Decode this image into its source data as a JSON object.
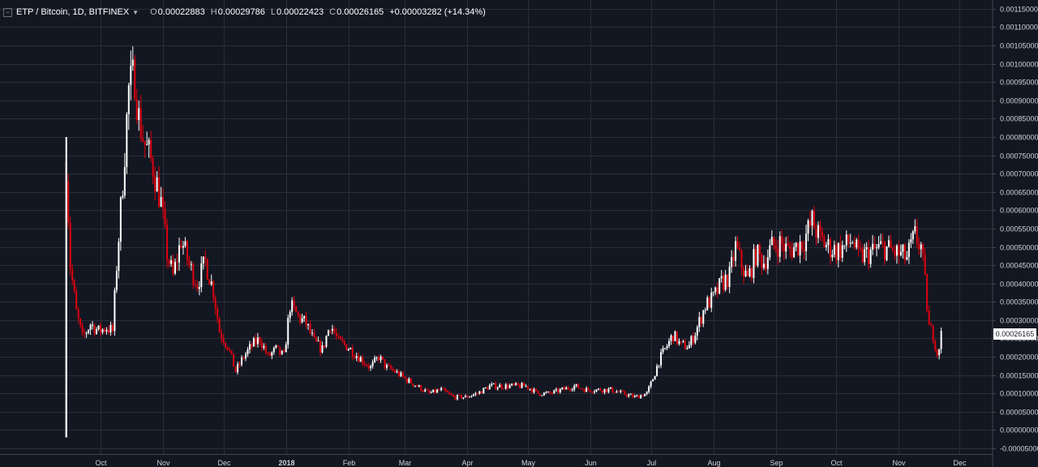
{
  "header": {
    "symbol": "ETP / Bitcoin, 1D, BITFINEX",
    "open_label": "O",
    "open": "0.00022883",
    "high_label": "H",
    "high": "0.00029786",
    "low_label": "L",
    "low": "0.00022423",
    "close_label": "C",
    "close": "0.00026165",
    "change": "+0.00003282 (+14.34%)"
  },
  "last_price_tag": "0.00026165",
  "colors": {
    "background": "#131722",
    "grid": "#2a2e39",
    "up": "#ffffff",
    "down": "#e0000f",
    "text": "#d1d4dc"
  },
  "chart_data": {
    "type": "candlestick",
    "title": "ETP / Bitcoin, 1D, BITFINEX",
    "ylim": [
      -5e-05,
      0.001152
    ],
    "y_ticks": [
      "0.00115000",
      "0.00110000",
      "0.00105000",
      "0.00100000",
      "0.00095000",
      "0.00090000",
      "0.00085000",
      "0.00080000",
      "0.00075000",
      "0.00070000",
      "0.00065000",
      "0.00060000",
      "0.00055000",
      "0.00050000",
      "0.00045000",
      "0.00040000",
      "0.00035000",
      "0.00030000",
      "0.00025000",
      "0.00020000",
      "0.00015000",
      "0.00010000",
      "0.00005000",
      "0.00000000",
      "-0.00005000"
    ],
    "x_ticks": [
      "Oct",
      "Nov",
      "Dec",
      "2018",
      "Feb",
      "Mar",
      "Apr",
      "May",
      "Jun",
      "Jul",
      "Aug",
      "Sep",
      "Oct",
      "Nov",
      "Dec"
    ],
    "grid": true,
    "close_series": [
      [
        "2017-09-14",
        0.00073
      ],
      [
        "2017-09-16",
        0.00045
      ],
      [
        "2017-09-19",
        0.00032
      ],
      [
        "2017-09-22",
        0.00025
      ],
      [
        "2017-09-26",
        0.00029
      ],
      [
        "2017-09-30",
        0.00027
      ],
      [
        "2017-10-04",
        0.00028
      ],
      [
        "2017-10-07",
        0.00027
      ],
      [
        "2017-10-09",
        0.00045
      ],
      [
        "2017-10-12",
        0.00068
      ],
      [
        "2017-10-15",
        0.00093
      ],
      [
        "2017-10-18",
        0.00097
      ],
      [
        "2017-10-20",
        0.00085
      ],
      [
        "2017-10-23",
        0.00078
      ],
      [
        "2017-10-27",
        0.00072
      ],
      [
        "2017-10-31",
        0.00062
      ],
      [
        "2017-11-03",
        0.00048
      ],
      [
        "2017-11-06",
        0.00042
      ],
      [
        "2017-11-10",
        0.00052
      ],
      [
        "2017-11-14",
        0.00045
      ],
      [
        "2017-11-18",
        0.0004
      ],
      [
        "2017-11-22",
        0.00046
      ],
      [
        "2017-11-26",
        0.00038
      ],
      [
        "2017-11-29",
        0.00027
      ],
      [
        "2017-12-03",
        0.00023
      ],
      [
        "2017-12-07",
        0.00016
      ],
      [
        "2017-12-11",
        0.0002
      ],
      [
        "2017-12-15",
        0.00023
      ],
      [
        "2017-12-19",
        0.00025
      ],
      [
        "2017-12-23",
        0.0002
      ],
      [
        "2017-12-27",
        0.00022
      ],
      [
        "2017-12-31",
        0.0002
      ],
      [
        "2018-01-03",
        0.00034
      ],
      [
        "2018-01-07",
        0.00031
      ],
      [
        "2018-01-11",
        0.00029
      ],
      [
        "2018-01-15",
        0.00024
      ],
      [
        "2018-01-19",
        0.00022
      ],
      [
        "2018-01-23",
        0.00029
      ],
      [
        "2018-01-27",
        0.00024
      ],
      [
        "2018-01-31",
        0.00023
      ],
      [
        "2018-02-04",
        0.00021
      ],
      [
        "2018-02-08",
        0.00019
      ],
      [
        "2018-02-12",
        0.00017
      ],
      [
        "2018-02-16",
        0.0002
      ],
      [
        "2018-02-20",
        0.00017
      ],
      [
        "2018-02-24",
        0.00016
      ],
      [
        "2018-03-01",
        0.00014
      ],
      [
        "2018-03-07",
        0.00012
      ],
      [
        "2018-03-13",
        0.0001
      ],
      [
        "2018-03-19",
        0.00011
      ],
      [
        "2018-03-25",
        9e-05
      ],
      [
        "2018-03-31",
        9e-05
      ],
      [
        "2018-04-06",
        0.0001
      ],
      [
        "2018-04-12",
        0.00012
      ],
      [
        "2018-04-18",
        0.00012
      ],
      [
        "2018-04-24",
        0.00012
      ],
      [
        "2018-04-30",
        0.00012
      ],
      [
        "2018-05-06",
        0.0001
      ],
      [
        "2018-05-12",
        0.0001
      ],
      [
        "2018-05-18",
        0.00011
      ],
      [
        "2018-05-24",
        0.00012
      ],
      [
        "2018-05-30",
        0.00011
      ],
      [
        "2018-06-05",
        0.00011
      ],
      [
        "2018-06-11",
        0.00011
      ],
      [
        "2018-06-17",
        0.0001
      ],
      [
        "2018-06-23",
        9e-05
      ],
      [
        "2018-06-29",
        0.0001
      ],
      [
        "2018-07-02",
        0.00014
      ],
      [
        "2018-07-05",
        0.00019
      ],
      [
        "2018-07-08",
        0.00022
      ],
      [
        "2018-07-12",
        0.00026
      ],
      [
        "2018-07-16",
        0.00023
      ],
      [
        "2018-07-20",
        0.00023
      ],
      [
        "2018-07-24",
        0.00028
      ],
      [
        "2018-07-28",
        0.00034
      ],
      [
        "2018-08-01",
        0.00036
      ],
      [
        "2018-08-05",
        0.0004
      ],
      [
        "2018-08-09",
        0.00042
      ],
      [
        "2018-08-12",
        0.0005
      ],
      [
        "2018-08-15",
        0.00045
      ],
      [
        "2018-08-18",
        0.00041
      ],
      [
        "2018-08-22",
        0.00048
      ],
      [
        "2018-08-26",
        0.00046
      ],
      [
        "2018-08-30",
        0.0005
      ],
      [
        "2018-09-03",
        0.00051
      ],
      [
        "2018-09-07",
        0.00049
      ],
      [
        "2018-09-11",
        0.0005
      ],
      [
        "2018-09-15",
        0.00052
      ],
      [
        "2018-09-19",
        0.00057
      ],
      [
        "2018-09-23",
        0.00052
      ],
      [
        "2018-09-27",
        0.0005
      ],
      [
        "2018-10-01",
        0.00049
      ],
      [
        "2018-10-05",
        0.0005
      ],
      [
        "2018-10-09",
        0.00052
      ],
      [
        "2018-10-12",
        0.00047
      ],
      [
        "2018-10-16",
        0.00048
      ],
      [
        "2018-10-20",
        0.00049
      ],
      [
        "2018-10-24",
        0.0005
      ],
      [
        "2018-10-28",
        0.00049
      ],
      [
        "2018-11-01",
        0.00048
      ],
      [
        "2018-11-05",
        0.00047
      ],
      [
        "2018-11-09",
        0.00053
      ],
      [
        "2018-11-12",
        0.0005
      ],
      [
        "2018-11-14",
        0.0004
      ],
      [
        "2018-11-16",
        0.00028
      ],
      [
        "2018-11-18",
        0.00026
      ],
      [
        "2018-11-20",
        0.00021
      ],
      [
        "2018-11-21",
        0.00023
      ],
      [
        "2018-11-22",
        0.00026
      ]
    ]
  }
}
